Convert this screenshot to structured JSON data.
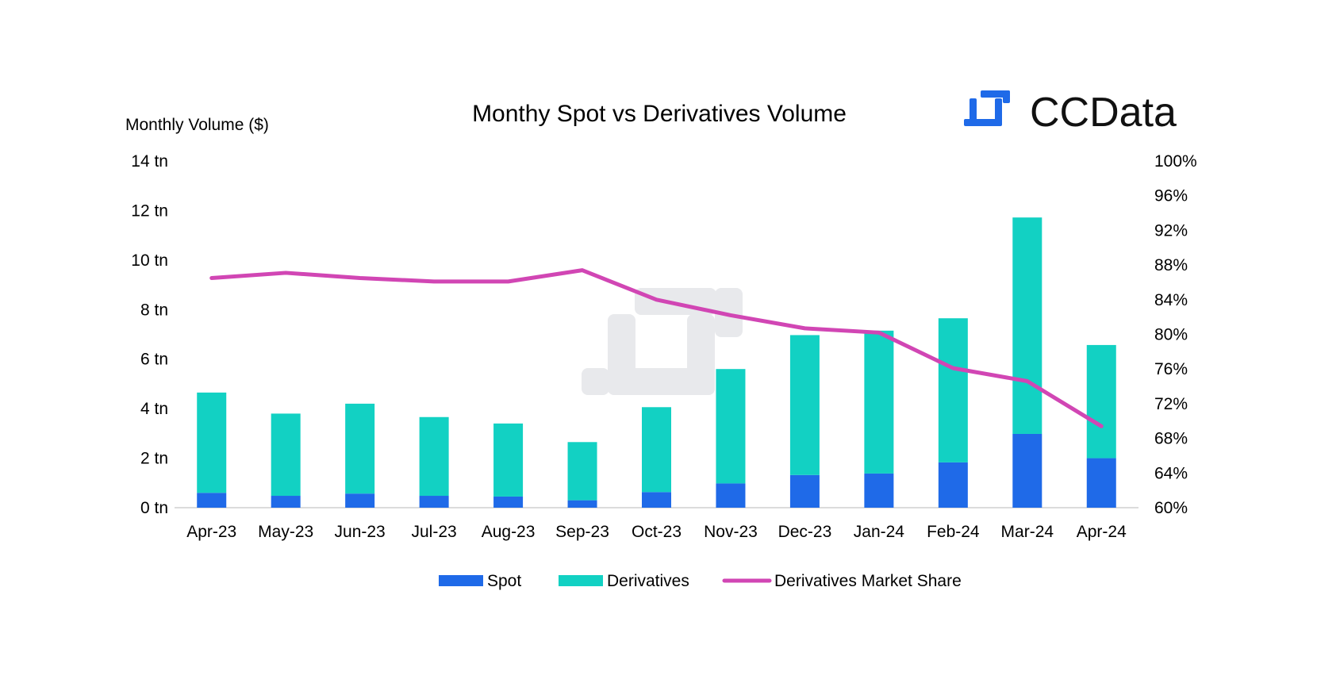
{
  "chart_data": {
    "type": "bar",
    "stacked": true,
    "title": "Monthy Spot vs Derivatives Volume",
    "ylabel": "Monthly Volume ($)",
    "y2label": "",
    "brand": "CCData",
    "categories": [
      "Apr-23",
      "May-23",
      "Jun-23",
      "Jul-23",
      "Aug-23",
      "Sep-23",
      "Oct-23",
      "Nov-23",
      "Dec-23",
      "Jan-24",
      "Feb-24",
      "Mar-24",
      "Apr-24"
    ],
    "ylim": [
      0,
      14
    ],
    "yticks": [
      0,
      2,
      4,
      6,
      8,
      10,
      12,
      14
    ],
    "ytick_labels": [
      "0 tn",
      "2 tn",
      "4 tn",
      "6 tn",
      "8 tn",
      "10 tn",
      "12 tn",
      "14 tn"
    ],
    "y2lim": [
      60,
      100
    ],
    "y2ticks": [
      60,
      64,
      68,
      72,
      76,
      80,
      84,
      88,
      92,
      96,
      100
    ],
    "y2tick_labels": [
      "60%",
      "64%",
      "68%",
      "72%",
      "76%",
      "80%",
      "84%",
      "88%",
      "92%",
      "96%",
      "100%"
    ],
    "series": [
      {
        "name": "Spot",
        "kind": "bar",
        "axis": "left",
        "color": "#1f6ae8",
        "values": [
          0.6,
          0.48,
          0.57,
          0.48,
          0.45,
          0.3,
          0.63,
          0.98,
          1.32,
          1.38,
          1.83,
          2.98,
          2.0
        ]
      },
      {
        "name": "Derivatives",
        "kind": "bar",
        "axis": "left",
        "color": "#12d1c3",
        "values": [
          4.05,
          3.32,
          3.63,
          3.18,
          2.95,
          2.35,
          3.43,
          4.62,
          5.65,
          5.77,
          5.82,
          8.74,
          4.57
        ]
      },
      {
        "name": "Derivatives Market Share",
        "kind": "line",
        "axis": "right",
        "color": "#d146b4",
        "values": [
          86.5,
          87.1,
          86.5,
          86.1,
          86.1,
          87.4,
          84.0,
          82.2,
          80.7,
          80.2,
          76.1,
          74.6,
          69.4
        ]
      }
    ],
    "legend": {
      "position": "bottom"
    },
    "grid": false
  }
}
